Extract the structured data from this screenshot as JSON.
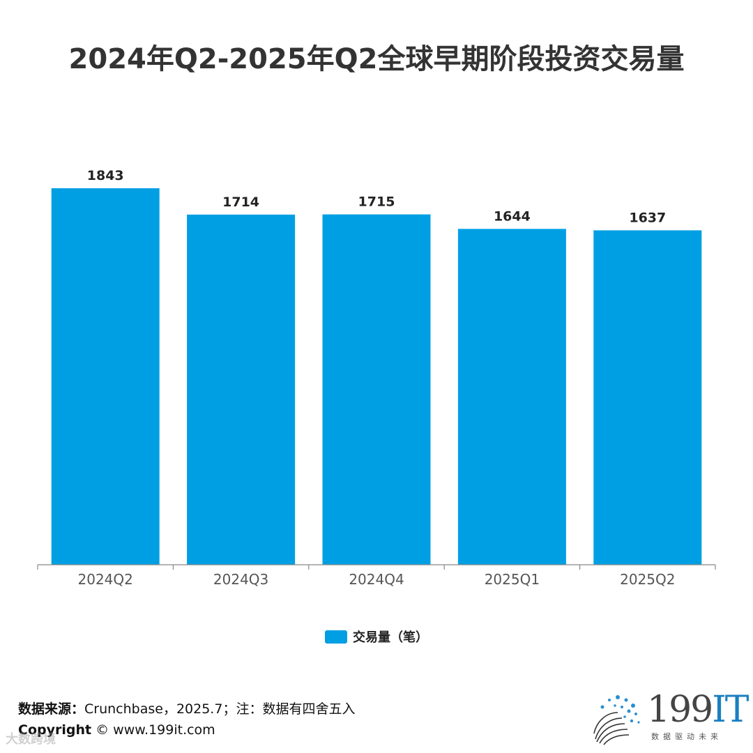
{
  "title": "2024年Q2-2025年Q2全球早期阶段投资交易量",
  "chart_data": {
    "type": "bar",
    "categories": [
      "2024Q2",
      "2024Q3",
      "2024Q4",
      "2025Q1",
      "2025Q2"
    ],
    "series": [
      {
        "name": "交易量（笔）",
        "values": [
          1843,
          1714,
          1715,
          1644,
          1637
        ],
        "color": "#009fe3"
      }
    ],
    "data_labels": [
      "1843",
      "1714",
      "1715",
      "1644",
      "1637"
    ],
    "ylim": [
      0,
      1843
    ],
    "legend_position": "bottom",
    "grid": false
  },
  "legend": {
    "label": "交易量（笔）",
    "color": "#009fe3"
  },
  "footer": {
    "source_label": "数据来源：",
    "source_text": "Crunchbase，2025.7；注：数据有四舍五入",
    "copyright_label": "Copyright",
    "copyright_text": " © www.199it.com"
  },
  "watermark": "大数跨境",
  "logo": {
    "number": "199",
    "suffix": "IT",
    "slogan": "数据驱动未来"
  }
}
